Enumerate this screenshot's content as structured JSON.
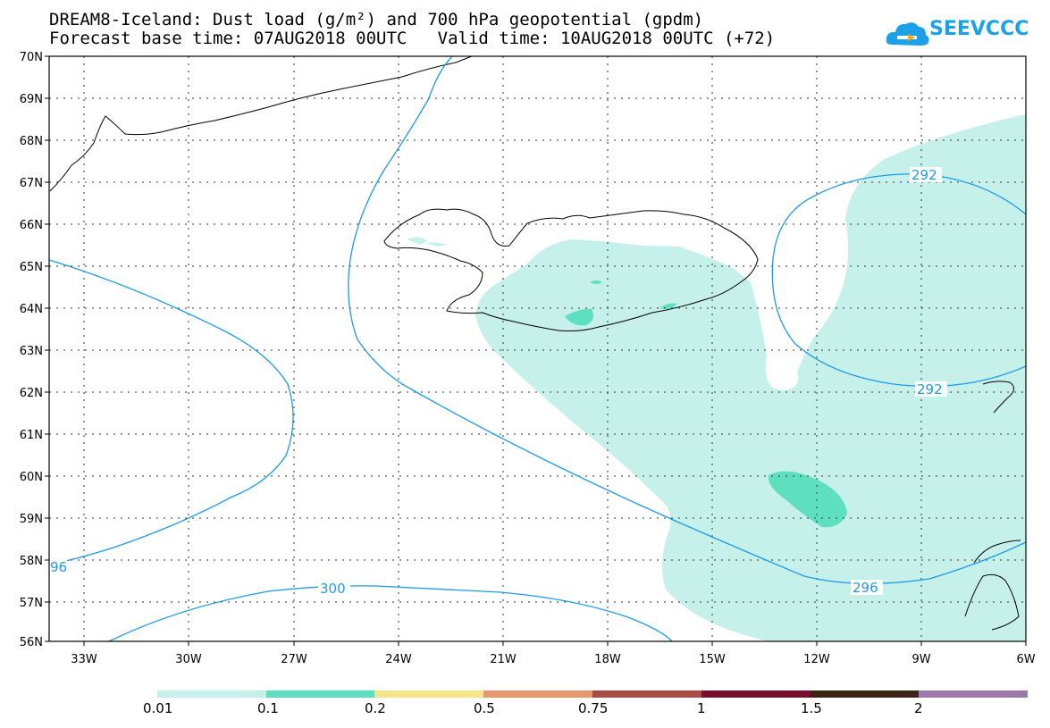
{
  "title": {
    "line1": "DREAM8-Iceland: Dust load (g/m²) and 700 hPa geopotential (gpdm)",
    "line2": "Forecast base time: 07AUG2018 00UTC   Valid time: 10AUG2018 00UTC (+72)"
  },
  "logo": {
    "text": "SEEVCCC",
    "icon": "cloud-logo-icon",
    "color": "#1da1e6"
  },
  "map": {
    "lat_range": [
      56,
      70
    ],
    "lon_range": [
      -34.2,
      -6
    ],
    "lat_ticks": [
      "70N",
      "69N",
      "68N",
      "67N",
      "66N",
      "65N",
      "64N",
      "63N",
      "62N",
      "61N",
      "60N",
      "59N",
      "58N",
      "57N",
      "56N"
    ],
    "lon_ticks": [
      "33W",
      "30W",
      "27W",
      "24W",
      "21W",
      "18W",
      "15W",
      "12W",
      "9W",
      "6W"
    ],
    "contour_color": "#1e9be8",
    "contour_labels": [
      "292",
      "292",
      "296",
      "300",
      "96"
    ]
  },
  "colorbar": {
    "labels": [
      "0.01",
      "0.1",
      "0.2",
      "0.5",
      "0.75",
      "1",
      "1.5",
      "2"
    ],
    "colors": [
      "#c6f0ea",
      "#5ee0c0",
      "#f5e68a",
      "#e89670",
      "#a84c44",
      "#7a0e2a",
      "#3a2416",
      "#9a7aa8"
    ]
  }
}
